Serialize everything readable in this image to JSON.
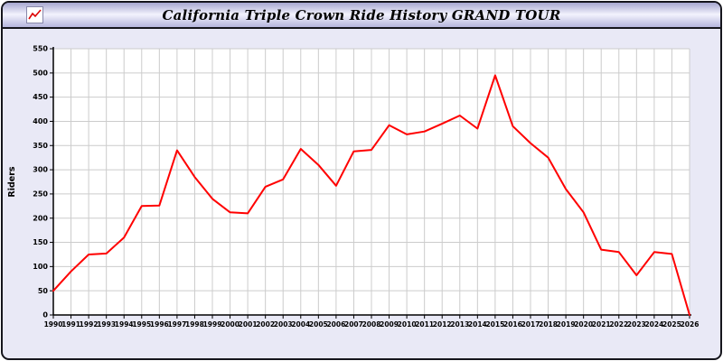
{
  "window": {
    "title": "California Triple Crown Ride History GRAND TOUR",
    "icon": "mini-line-chart-icon"
  },
  "colors": {
    "window_bg": "#e9e9f6",
    "plot_bg": "#ffffff",
    "grid": "#cccccc",
    "axis": "#000000",
    "line": "#ff0000",
    "titlebar_top": "#a6a6d0",
    "titlebar_mid": "#f3f3fd"
  },
  "chart_data": {
    "type": "line",
    "title": "California Triple Crown Ride History GRAND TOUR",
    "xlabel": "",
    "ylabel": "Riders",
    "ylim": [
      0,
      550
    ],
    "ytick_step": 50,
    "grid": true,
    "legend": "none",
    "categories": [
      "1990",
      "1991",
      "1992",
      "1993",
      "1994",
      "1995",
      "1996",
      "1997",
      "1998",
      "1999",
      "2000",
      "2001",
      "2002",
      "2003",
      "2004",
      "2005",
      "2006",
      "2007",
      "2008",
      "2009",
      "2010",
      "2011",
      "2012",
      "2013",
      "2014",
      "2015",
      "2016",
      "2017",
      "2018",
      "2019",
      "2020",
      "2021",
      "2022",
      "2023",
      "2024",
      "2025",
      "2026"
    ],
    "series": [
      {
        "name": "Riders",
        "color": "#ff0000",
        "values": [
          50,
          90,
          125,
          127,
          160,
          225,
          226,
          340,
          285,
          240,
          212,
          210,
          265,
          280,
          343,
          310,
          267,
          338,
          341,
          392,
          373,
          379,
          395,
          412,
          385,
          495,
          390,
          355,
          325,
          260,
          212,
          135,
          130,
          82,
          130,
          126,
          0
        ]
      }
    ]
  }
}
